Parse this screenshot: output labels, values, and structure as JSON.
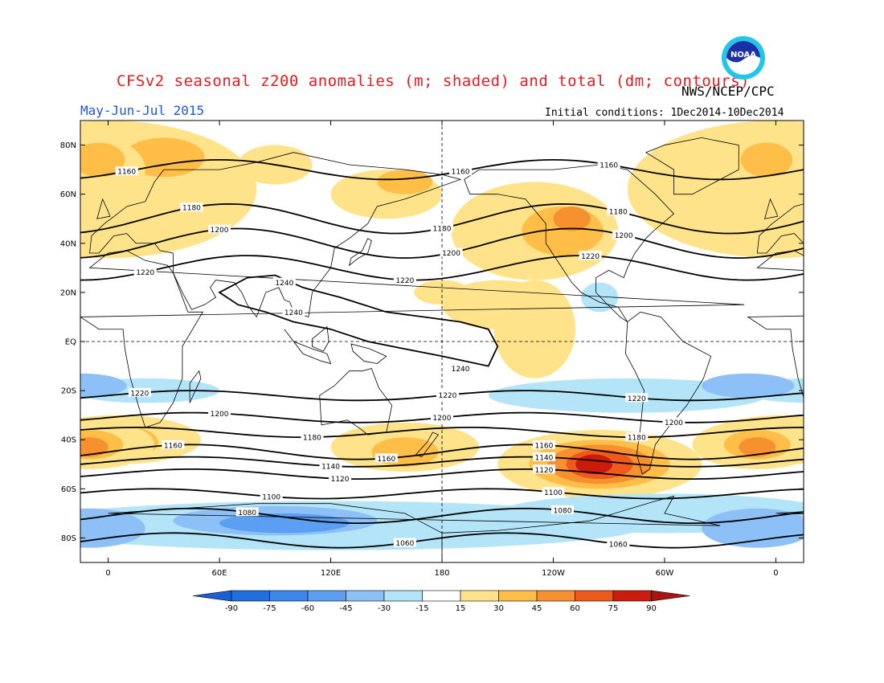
{
  "header": {
    "title": "CFSv2 seasonal z200 anomalies (m; shaded) and total (dm; contours)",
    "org": "NWS/NCEP/CPC",
    "season": "May-Jun-Jul 2015",
    "initial_conditions": "Initial conditions: 1Dec2014-10Dec2014",
    "logo_text": "NOAA"
  },
  "map": {
    "lat_labels": [
      "80N",
      "60N",
      "40N",
      "20N",
      "EQ",
      "20S",
      "40S",
      "60S",
      "80S"
    ],
    "lat_values": [
      80,
      60,
      40,
      20,
      0,
      -20,
      -40,
      -60,
      -80
    ],
    "lon_labels": [
      "0",
      "60E",
      "120E",
      "180",
      "120W",
      "60W",
      "0"
    ],
    "lon_values": [
      0,
      60,
      120,
      180,
      240,
      300,
      360
    ],
    "contours": [
      {
        "value": "1060",
        "lat": -81,
        "amp": 3,
        "phase": 20,
        "label_lon": [
          160,
          275
        ]
      },
      {
        "value": "1080",
        "lat": -71,
        "amp": 3,
        "phase": 0,
        "label_lon": [
          75,
          245
        ]
      },
      {
        "value": "1100",
        "lat": -62,
        "amp": 2,
        "phase": 40,
        "label_lon": [
          88,
          240
        ]
      },
      {
        "value": "1120",
        "lat": -54,
        "amp": 2,
        "phase": 0,
        "label_lon": [
          125,
          235
        ]
      },
      {
        "value": "1140",
        "lat": -49,
        "amp": 2,
        "phase": 0,
        "label_lon": [
          120,
          235
        ]
      },
      {
        "value": "1160",
        "lat": -45,
        "amp": 3,
        "phase": 0,
        "label_lon": [
          35,
          150,
          235
        ]
      },
      {
        "value": "1180",
        "lat": -37,
        "amp": 2,
        "phase": 60,
        "label_lon": [
          110,
          285
        ]
      },
      {
        "value": "1200",
        "lat": -31,
        "amp": 2,
        "phase": 0,
        "label_lon": [
          60,
          180,
          305
        ]
      },
      {
        "value": "1220",
        "lat": -22,
        "amp": 2,
        "phase": 0,
        "label_lon": [
          17,
          183,
          285
        ]
      },
      {
        "value": "1220",
        "lat": 30,
        "amp": 5,
        "phase": -60,
        "label_lon": [
          20,
          160,
          260
        ]
      },
      {
        "value": "1200",
        "lat": 40,
        "amp": 6,
        "phase": -50,
        "label_lon": [
          60,
          185,
          278
        ]
      },
      {
        "value": "1180",
        "lat": 50,
        "amp": 6,
        "phase": -40,
        "label_lon": [
          45,
          180,
          275
        ]
      },
      {
        "value": "1160",
        "lat": 70,
        "amp": 4,
        "phase": -30,
        "label_lon": [
          10,
          190,
          270
        ]
      }
    ],
    "contour_1240": "1240",
    "colorbar": {
      "ticks": [
        "-90",
        "-75",
        "-60",
        "-45",
        "-30",
        "-15",
        "15",
        "30",
        "45",
        "60",
        "75",
        "90"
      ],
      "colors": [
        "#1f6fe0",
        "#3d87ec",
        "#5a9ff2",
        "#8cc0f7",
        "#b4e4f7",
        "#ffffff",
        "#ffe38b",
        "#ffbe47",
        "#f7902f",
        "#ee5a1c",
        "#cc1b0d"
      ],
      "low_color": "#1a5fd6",
      "high_color": "#aa1410"
    },
    "anomaly_colors": {
      "pos1": "#ffe38b",
      "pos2": "#ffbe47",
      "pos3": "#f7902f",
      "pos4": "#ee5a1c",
      "pos5": "#cc1b0d",
      "neg1": "#b4e4f7",
      "neg2": "#8cc0f7",
      "neg3": "#5a9ff2"
    }
  }
}
